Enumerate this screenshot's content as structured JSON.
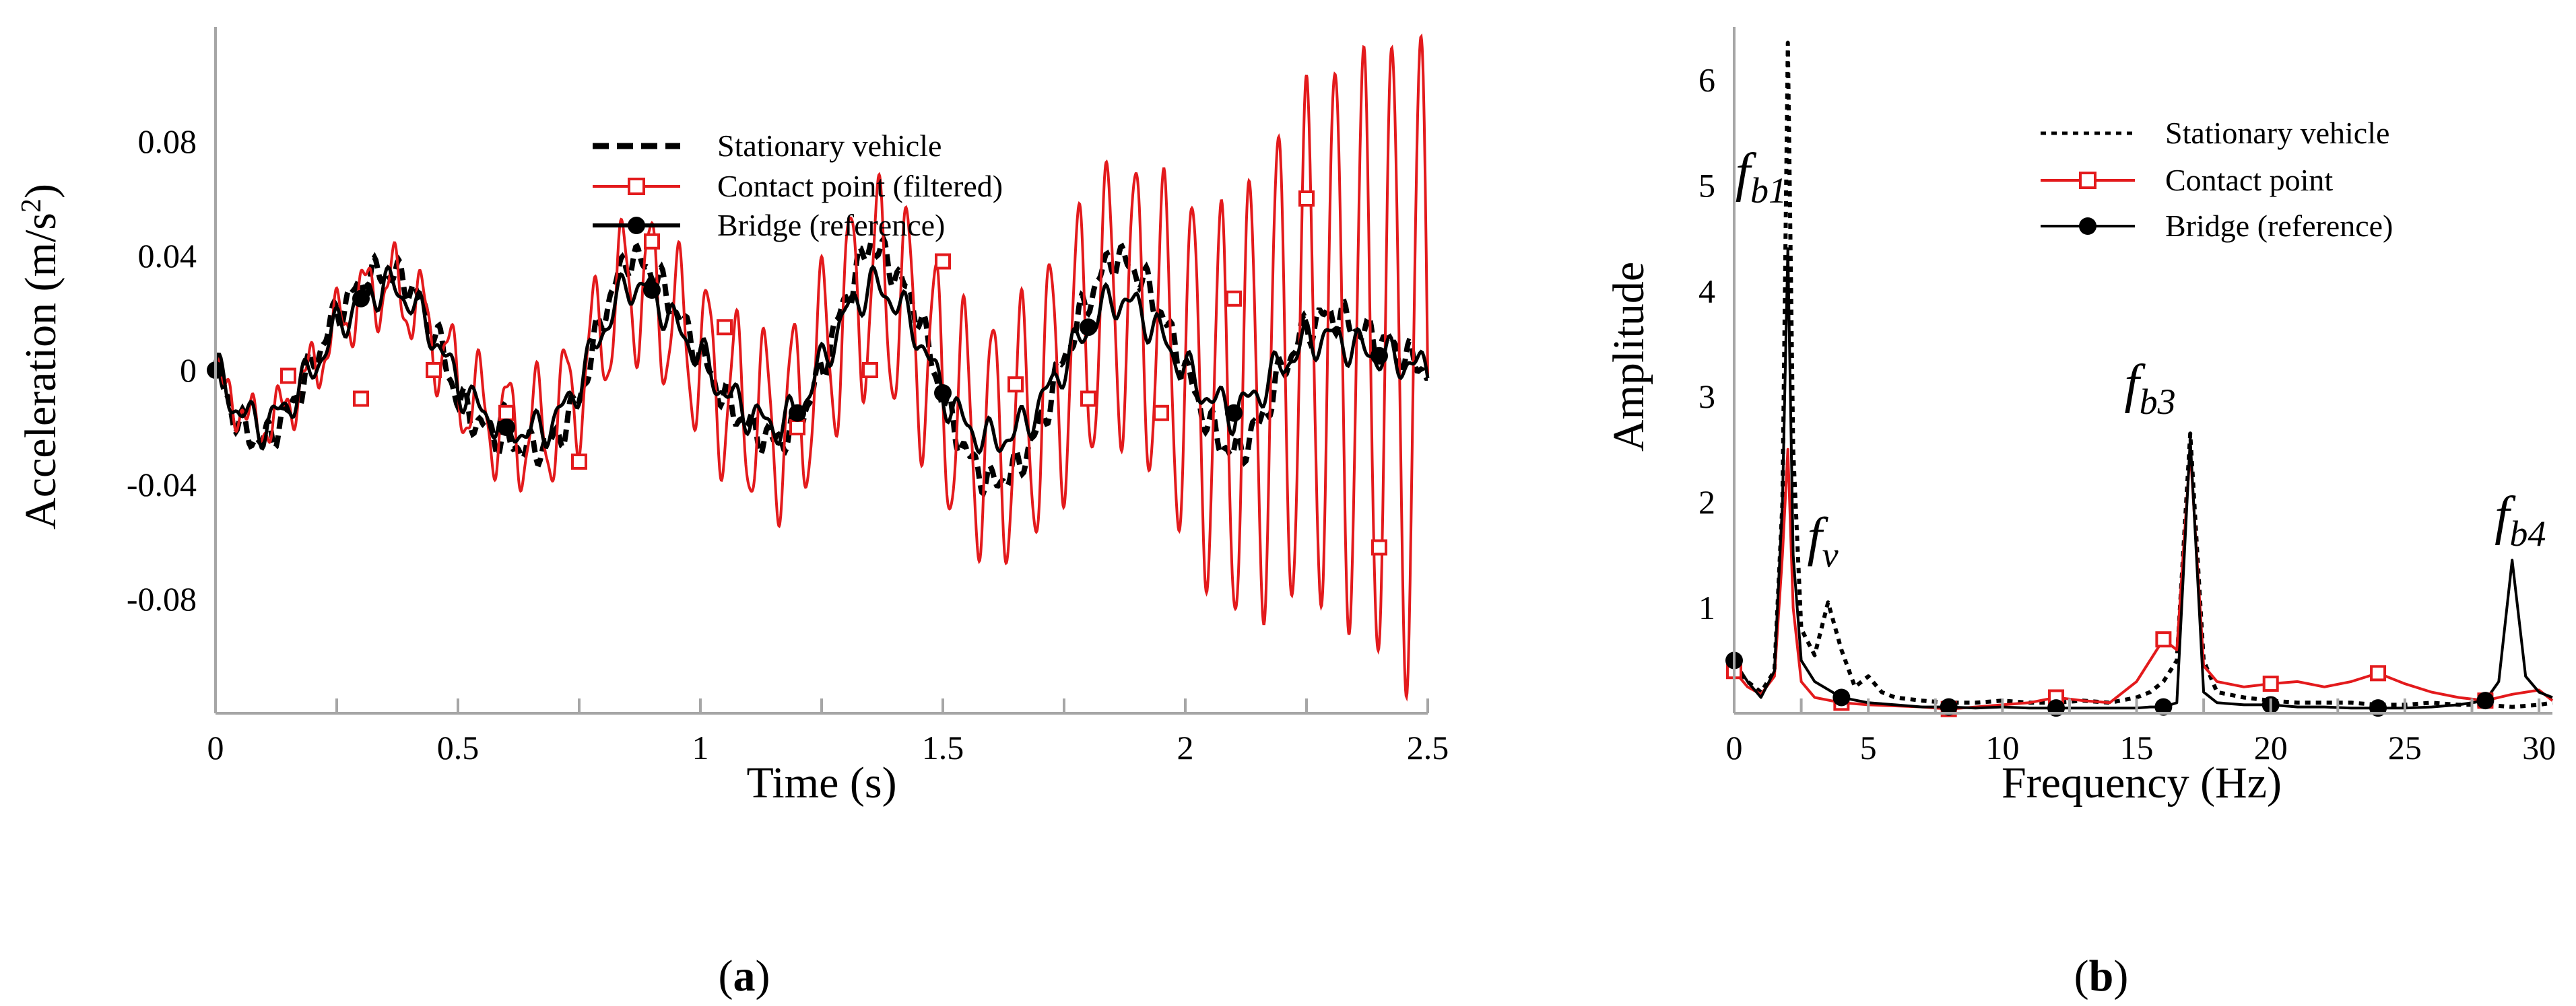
{
  "chart_data": [
    {
      "type": "line",
      "panel_label": {
        "open": "(",
        "letter": "a",
        "close": ")"
      },
      "xlabel": "Time (s)",
      "ylabel": "Acceleration (m/s",
      "ylabel_sup": "2",
      "ylabel_close": ")",
      "xlim": [
        0,
        2.5
      ],
      "ylim": [
        -0.12,
        0.12
      ],
      "xticks": [
        0,
        0.5,
        1,
        1.5,
        2,
        2.5
      ],
      "xtick_labels": [
        "0",
        "0.5",
        "1",
        "1.5",
        "2",
        "2.5"
      ],
      "yticks": [
        -0.08,
        -0.04,
        0,
        0.04,
        0.08
      ],
      "ytick_labels": [
        "-0.08",
        "-0.04",
        "0",
        "0.04",
        "0.08"
      ],
      "legend": [
        "Stationary vehicle",
        "Contact point (filtered)",
        "Bridge (reference)"
      ],
      "series": [
        {
          "name": "Stationary vehicle",
          "color": "#000000",
          "style": "dashed",
          "x": [
            0,
            0.05,
            0.1,
            0.15,
            0.2,
            0.25,
            0.3,
            0.35,
            0.4,
            0.45,
            0.5,
            0.55,
            0.6,
            0.65,
            0.7,
            0.75,
            0.8,
            0.85,
            0.9,
            0.95,
            1.0,
            1.05,
            1.1,
            1.15,
            1.2,
            1.25,
            1.3,
            1.35,
            1.4,
            1.45,
            1.5,
            1.55,
            1.6,
            1.65,
            1.7,
            1.75,
            1.8,
            1.85,
            1.9,
            1.95,
            2.0,
            2.05,
            2.1,
            2.15,
            2.2,
            2.25,
            2.3,
            2.35,
            2.4,
            2.45,
            2.5
          ],
          "y": [
            0,
            -0.02,
            -0.025,
            -0.015,
            0.002,
            0.02,
            0.03,
            0.035,
            0.03,
            0.015,
            -0.01,
            -0.02,
            -0.025,
            -0.028,
            -0.025,
            -0.01,
            0.02,
            0.04,
            0.035,
            0.02,
            0.005,
            -0.01,
            -0.02,
            -0.025,
            -0.02,
            0,
            0.025,
            0.045,
            0.035,
            0.02,
            -0.01,
            -0.03,
            -0.04,
            -0.035,
            -0.02,
            0.005,
            0.025,
            0.04,
            0.035,
            0.02,
            0,
            -0.02,
            -0.03,
            -0.02,
            0,
            0.015,
            0.02,
            0.015,
            0.01,
            0.005,
            0
          ]
        },
        {
          "name": "Contact point (filtered)",
          "color": "#e31a1c",
          "style": "solid-oscillating",
          "marker": "open-square",
          "x_marks": [
            0.15,
            0.3,
            0.45,
            0.6,
            0.75,
            0.9,
            1.05,
            1.2,
            1.35,
            1.5,
            1.65,
            1.8,
            1.95,
            2.1,
            2.25,
            2.4
          ],
          "y_marks": [
            -0.002,
            -0.01,
            0.0,
            -0.015,
            -0.032,
            0.045,
            0.015,
            -0.02,
            0.0,
            0.038,
            -0.005,
            -0.01,
            -0.015,
            0.025,
            0.06,
            -0.062
          ]
        },
        {
          "name": "Bridge (reference)",
          "color": "#000000",
          "style": "solid",
          "marker": "filled-circle",
          "x": [
            0,
            0.05,
            0.1,
            0.15,
            0.2,
            0.25,
            0.3,
            0.35,
            0.4,
            0.45,
            0.5,
            0.55,
            0.6,
            0.65,
            0.7,
            0.75,
            0.8,
            0.85,
            0.9,
            0.95,
            1.0,
            1.05,
            1.1,
            1.15,
            1.2,
            1.25,
            1.3,
            1.35,
            1.4,
            1.45,
            1.5,
            1.55,
            1.6,
            1.65,
            1.7,
            1.75,
            1.8,
            1.85,
            1.9,
            1.95,
            2.0,
            2.05,
            2.1,
            2.15,
            2.2,
            2.25,
            2.3,
            2.35,
            2.4,
            2.45,
            2.5
          ],
          "y": [
            0,
            -0.015,
            -0.02,
            -0.012,
            0.0,
            0.015,
            0.025,
            0.03,
            0.025,
            0.012,
            -0.005,
            -0.015,
            -0.02,
            -0.022,
            -0.018,
            -0.005,
            0.015,
            0.03,
            0.028,
            0.015,
            0.005,
            -0.008,
            -0.015,
            -0.02,
            -0.015,
            0.002,
            0.02,
            0.03,
            0.025,
            0.012,
            -0.008,
            -0.02,
            -0.025,
            -0.022,
            -0.012,
            0.002,
            0.015,
            0.025,
            0.022,
            0.012,
            0.0,
            -0.01,
            -0.015,
            -0.008,
            0.002,
            0.01,
            0.012,
            0.008,
            0.005,
            0.003,
            0.0
          ],
          "x_marks": [
            0,
            0.3,
            0.6,
            0.9,
            1.2,
            1.5,
            1.8,
            2.1,
            2.4
          ],
          "y_marks": [
            0,
            0.025,
            -0.02,
            0.028,
            -0.015,
            -0.008,
            0.015,
            -0.015,
            0.005
          ]
        }
      ]
    },
    {
      "type": "line",
      "panel_label": {
        "open": "(",
        "letter": "b",
        "close": ")"
      },
      "xlabel": "Frequency (Hz)",
      "ylabel": "Amplitude",
      "xlim": [
        0,
        30.5
      ],
      "ylim": [
        0,
        6.5
      ],
      "xticks": [
        0,
        5,
        10,
        15,
        20,
        25,
        30
      ],
      "xtick_labels": [
        "0",
        "5",
        "10",
        "15",
        "20",
        "25",
        "30"
      ],
      "yticks": [
        1,
        2,
        3,
        4,
        5,
        6
      ],
      "ytick_labels": [
        "1",
        "2",
        "3",
        "4",
        "5",
        "6"
      ],
      "legend": [
        "Stationary vehicle",
        "Contact point",
        "Bridge (reference)"
      ],
      "annotations": [
        {
          "base": "f",
          "sub": "b1",
          "x": 1.0,
          "y": 4.95
        },
        {
          "base": "f",
          "sub": "v",
          "x": 3.3,
          "y": 1.5
        },
        {
          "base": "f",
          "sub": "b3",
          "x": 15.5,
          "y": 2.95
        },
        {
          "base": "f",
          "sub": "b4",
          "x": 29.3,
          "y": 1.7
        }
      ],
      "series": [
        {
          "name": "Stationary vehicle",
          "color": "#000000",
          "style": "dotted",
          "x": [
            0,
            0.5,
            1,
            1.5,
            1.8,
            2.0,
            2.2,
            2.5,
            3.0,
            3.5,
            4.0,
            4.5,
            5.0,
            5.5,
            6,
            7,
            8,
            9,
            10,
            11,
            12,
            13,
            14,
            15,
            15.5,
            16,
            16.5,
            17.0,
            17.5,
            18,
            19,
            20,
            21,
            22,
            23,
            24,
            25,
            26,
            27,
            28,
            29,
            30,
            30.5
          ],
          "y": [
            0.45,
            0.3,
            0.2,
            0.4,
            2.0,
            6.35,
            2.5,
            0.8,
            0.55,
            1.05,
            0.6,
            0.25,
            0.35,
            0.2,
            0.15,
            0.12,
            0.1,
            0.1,
            0.12,
            0.1,
            0.1,
            0.12,
            0.1,
            0.15,
            0.2,
            0.3,
            0.5,
            2.65,
            0.5,
            0.2,
            0.15,
            0.12,
            0.1,
            0.1,
            0.1,
            0.08,
            0.08,
            0.1,
            0.08,
            0.08,
            0.06,
            0.08,
            0.1
          ]
        },
        {
          "name": "Contact point",
          "color": "#e31a1c",
          "style": "solid",
          "marker": "open-square",
          "x": [
            0,
            0.5,
            1,
            1.5,
            1.8,
            2.0,
            2.2,
            2.5,
            3,
            4,
            5,
            6,
            7,
            8,
            9,
            10,
            11,
            12,
            13,
            14,
            15,
            15.5,
            16,
            16.5,
            17.0,
            17.5,
            18,
            19,
            20,
            21,
            22,
            23,
            24,
            25,
            26,
            27,
            28,
            29,
            30,
            30.5
          ],
          "y": [
            0.4,
            0.25,
            0.18,
            0.35,
            1.5,
            2.5,
            1.0,
            0.3,
            0.15,
            0.1,
            0.08,
            0.07,
            0.06,
            0.04,
            0.06,
            0.08,
            0.1,
            0.15,
            0.12,
            0.1,
            0.3,
            0.5,
            0.7,
            0.6,
            2.5,
            0.45,
            0.3,
            0.25,
            0.28,
            0.3,
            0.25,
            0.3,
            0.38,
            0.28,
            0.2,
            0.15,
            0.12,
            0.18,
            0.22,
            0.12
          ]
        },
        {
          "name": "Bridge (reference)",
          "color": "#000000",
          "style": "solid",
          "marker": "filled-circle",
          "x": [
            0,
            0.5,
            1,
            1.5,
            1.8,
            2.0,
            2.2,
            2.5,
            3,
            4,
            5,
            6,
            7,
            8,
            9,
            10,
            11,
            12,
            13,
            14,
            15,
            15.5,
            16,
            16.5,
            17.0,
            17.5,
            18,
            19,
            20,
            21,
            22,
            23,
            24,
            25,
            26,
            27,
            28,
            28.5,
            29.0,
            29.5,
            30,
            30.5
          ],
          "y": [
            0.5,
            0.3,
            0.15,
            0.4,
            2.0,
            4.4,
            1.5,
            0.5,
            0.3,
            0.15,
            0.1,
            0.08,
            0.06,
            0.06,
            0.05,
            0.06,
            0.05,
            0.05,
            0.05,
            0.05,
            0.05,
            0.06,
            0.06,
            0.1,
            2.6,
            0.2,
            0.1,
            0.08,
            0.08,
            0.06,
            0.06,
            0.05,
            0.05,
            0.05,
            0.06,
            0.08,
            0.12,
            0.3,
            1.45,
            0.35,
            0.2,
            0.15
          ],
          "x_marks": [
            0,
            4,
            8,
            12,
            16,
            20,
            24,
            28
          ],
          "y_marks": [
            0.5,
            0.15,
            0.06,
            0.05,
            0.06,
            0.08,
            0.05,
            0.12
          ]
        }
      ]
    }
  ]
}
